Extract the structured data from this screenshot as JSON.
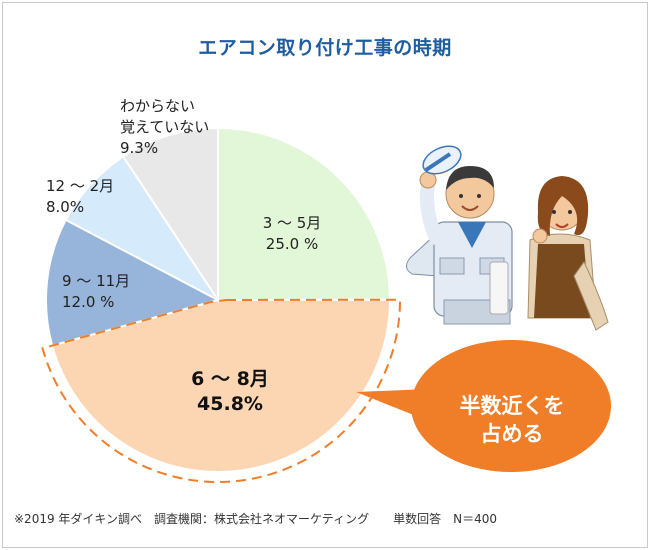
{
  "title": "エアコン取り付け工事の時期",
  "chart_data": {
    "type": "pie",
    "slices": [
      {
        "label": "3 ～ 5月",
        "value": 25.0,
        "value_text": "25.0 %",
        "color": "#e2f7d7"
      },
      {
        "label": "6 ～ 8月",
        "value": 45.8,
        "value_text": "45.8%",
        "color": "#fcd6b3"
      },
      {
        "label": "9 ～ 11月",
        "value": 12.0,
        "value_text": "12.0 %",
        "color": "#97b5da"
      },
      {
        "label": "12 ～ 2月",
        "value": 8.0,
        "value_text": "8.0%",
        "color": "#d5eafa"
      },
      {
        "label_line1": "わからない",
        "label_line2": "覚えていない",
        "value": 9.3,
        "value_text": "9.3%",
        "color": "#e8e8e8"
      }
    ],
    "highlight_color": "#f07d28"
  },
  "callout": {
    "line1": "半数近くを",
    "line2": "占める",
    "color": "#f07d28"
  },
  "footnote": "※2019 年ダイキン調べ　調査機関：株式会社ネオマーケティング　　単数回答　N＝400"
}
